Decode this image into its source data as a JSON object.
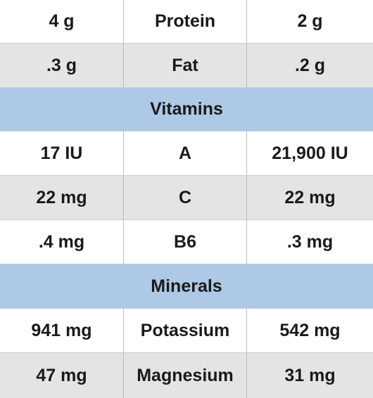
{
  "rows": [
    {
      "kind": "data",
      "shade": "white",
      "left": "4 g",
      "name": "Protein",
      "right": "2 g"
    },
    {
      "kind": "data",
      "shade": "gray",
      "left": ".3 g",
      "name": "Fat",
      "right": ".2 g"
    },
    {
      "kind": "section",
      "title": "Vitamins"
    },
    {
      "kind": "data",
      "shade": "white",
      "left": "17 IU",
      "name": "A",
      "right": "21,900 IU"
    },
    {
      "kind": "data",
      "shade": "gray",
      "left": "22 mg",
      "name": "C",
      "right": "22 mg"
    },
    {
      "kind": "data",
      "shade": "white",
      "left": ".4 mg",
      "name": "B6",
      "right": ".3 mg"
    },
    {
      "kind": "section",
      "title": "Minerals"
    },
    {
      "kind": "data",
      "shade": "white",
      "left": "941 mg",
      "name": "Potassium",
      "right": "542 mg"
    },
    {
      "kind": "data",
      "shade": "gray",
      "left": "47 mg",
      "name": "Magnesium",
      "right": "31 mg"
    }
  ],
  "colors": {
    "section_bg": "#aec9e6",
    "gray_row_bg": "#e4e4e4",
    "white_row_bg": "#ffffff",
    "text": "#1a1a1a"
  }
}
